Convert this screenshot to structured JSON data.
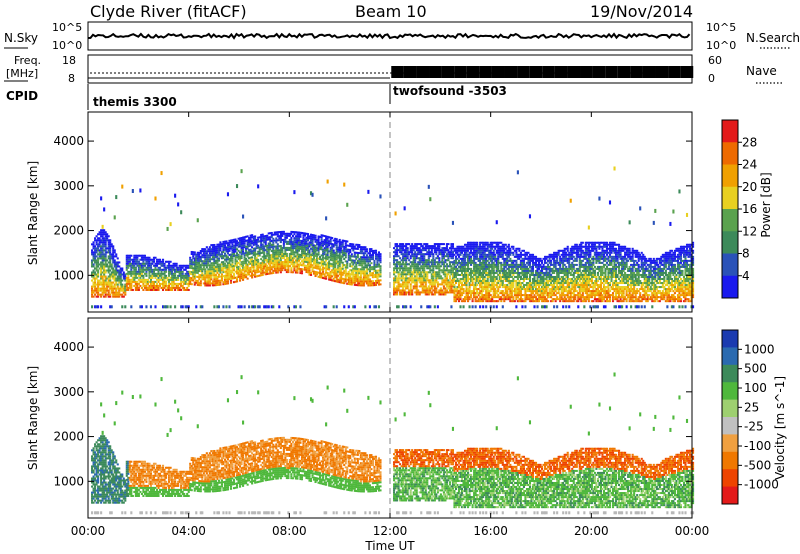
{
  "header": {
    "station": "Clyde River (fitACF)",
    "beam": "Beam 10",
    "date": "19/Nov/2014"
  },
  "top_panel": {
    "left_label": "N.Sky",
    "left_ticks": [
      "10^5",
      "10^0"
    ],
    "right_label": "N.Search",
    "right_ticks": [
      "10^5",
      "10^0"
    ]
  },
  "freq_panel": {
    "left_label_1": "Freq.",
    "left_label_2": "[MHz]",
    "left_ticks": [
      "18",
      "8"
    ],
    "right_label": "Nave",
    "right_ticks": [
      "60",
      "0"
    ]
  },
  "cpid": {
    "label": "CPID",
    "segments": [
      "themis 3300",
      "twofsound -3503"
    ]
  },
  "colors": {
    "power": [
      "#1a1aee",
      "#2a52b8",
      "#3c8a5a",
      "#5aa24e",
      "#e8d020",
      "#f0a000",
      "#ee6a00",
      "#e41a1a"
    ],
    "velocity": [
      "#e41a1a",
      "#ee4400",
      "#f07800",
      "#f0a040",
      "#c0c0c0",
      "#9ed070",
      "#4fb83c",
      "#3c8a5a",
      "#2a6ab0",
      "#1a3ab0"
    ],
    "ground_scatter": "#b8b8b8"
  },
  "chart_data": [
    {
      "type": "heatmap",
      "panel": "power",
      "ylabel": "Slant Range [km]",
      "xlabel": "Time UT",
      "x_ticks": [
        "00:00",
        "04:00",
        "08:00",
        "12:00",
        "16:00",
        "20:00",
        "00:00"
      ],
      "y_ticks": [
        "1000",
        "2000",
        "3000",
        "4000"
      ],
      "ylim": [
        180,
        4650
      ],
      "xlim_hours": [
        0,
        24
      ],
      "colorbar_label": "Power [dB]",
      "colorbar_ticks": [
        "28",
        "24",
        "20",
        "16",
        "12",
        "8",
        "4"
      ],
      "colorbar_range": [
        0,
        32
      ]
    },
    {
      "type": "heatmap",
      "panel": "velocity",
      "ylabel": "Slant Range [km]",
      "xlabel": "Time UT",
      "x_ticks": [
        "00:00",
        "04:00",
        "08:00",
        "12:00",
        "16:00",
        "20:00",
        "00:00"
      ],
      "y_ticks": [
        "1000",
        "2000",
        "3000",
        "4000"
      ],
      "ylim": [
        180,
        4650
      ],
      "xlim_hours": [
        0,
        24
      ],
      "colorbar_label": "Velocity [m s^-1]",
      "colorbar_ticks": [
        "1000",
        "500",
        "100",
        "25",
        "-25",
        "-100",
        "-500",
        "-1000"
      ]
    }
  ]
}
